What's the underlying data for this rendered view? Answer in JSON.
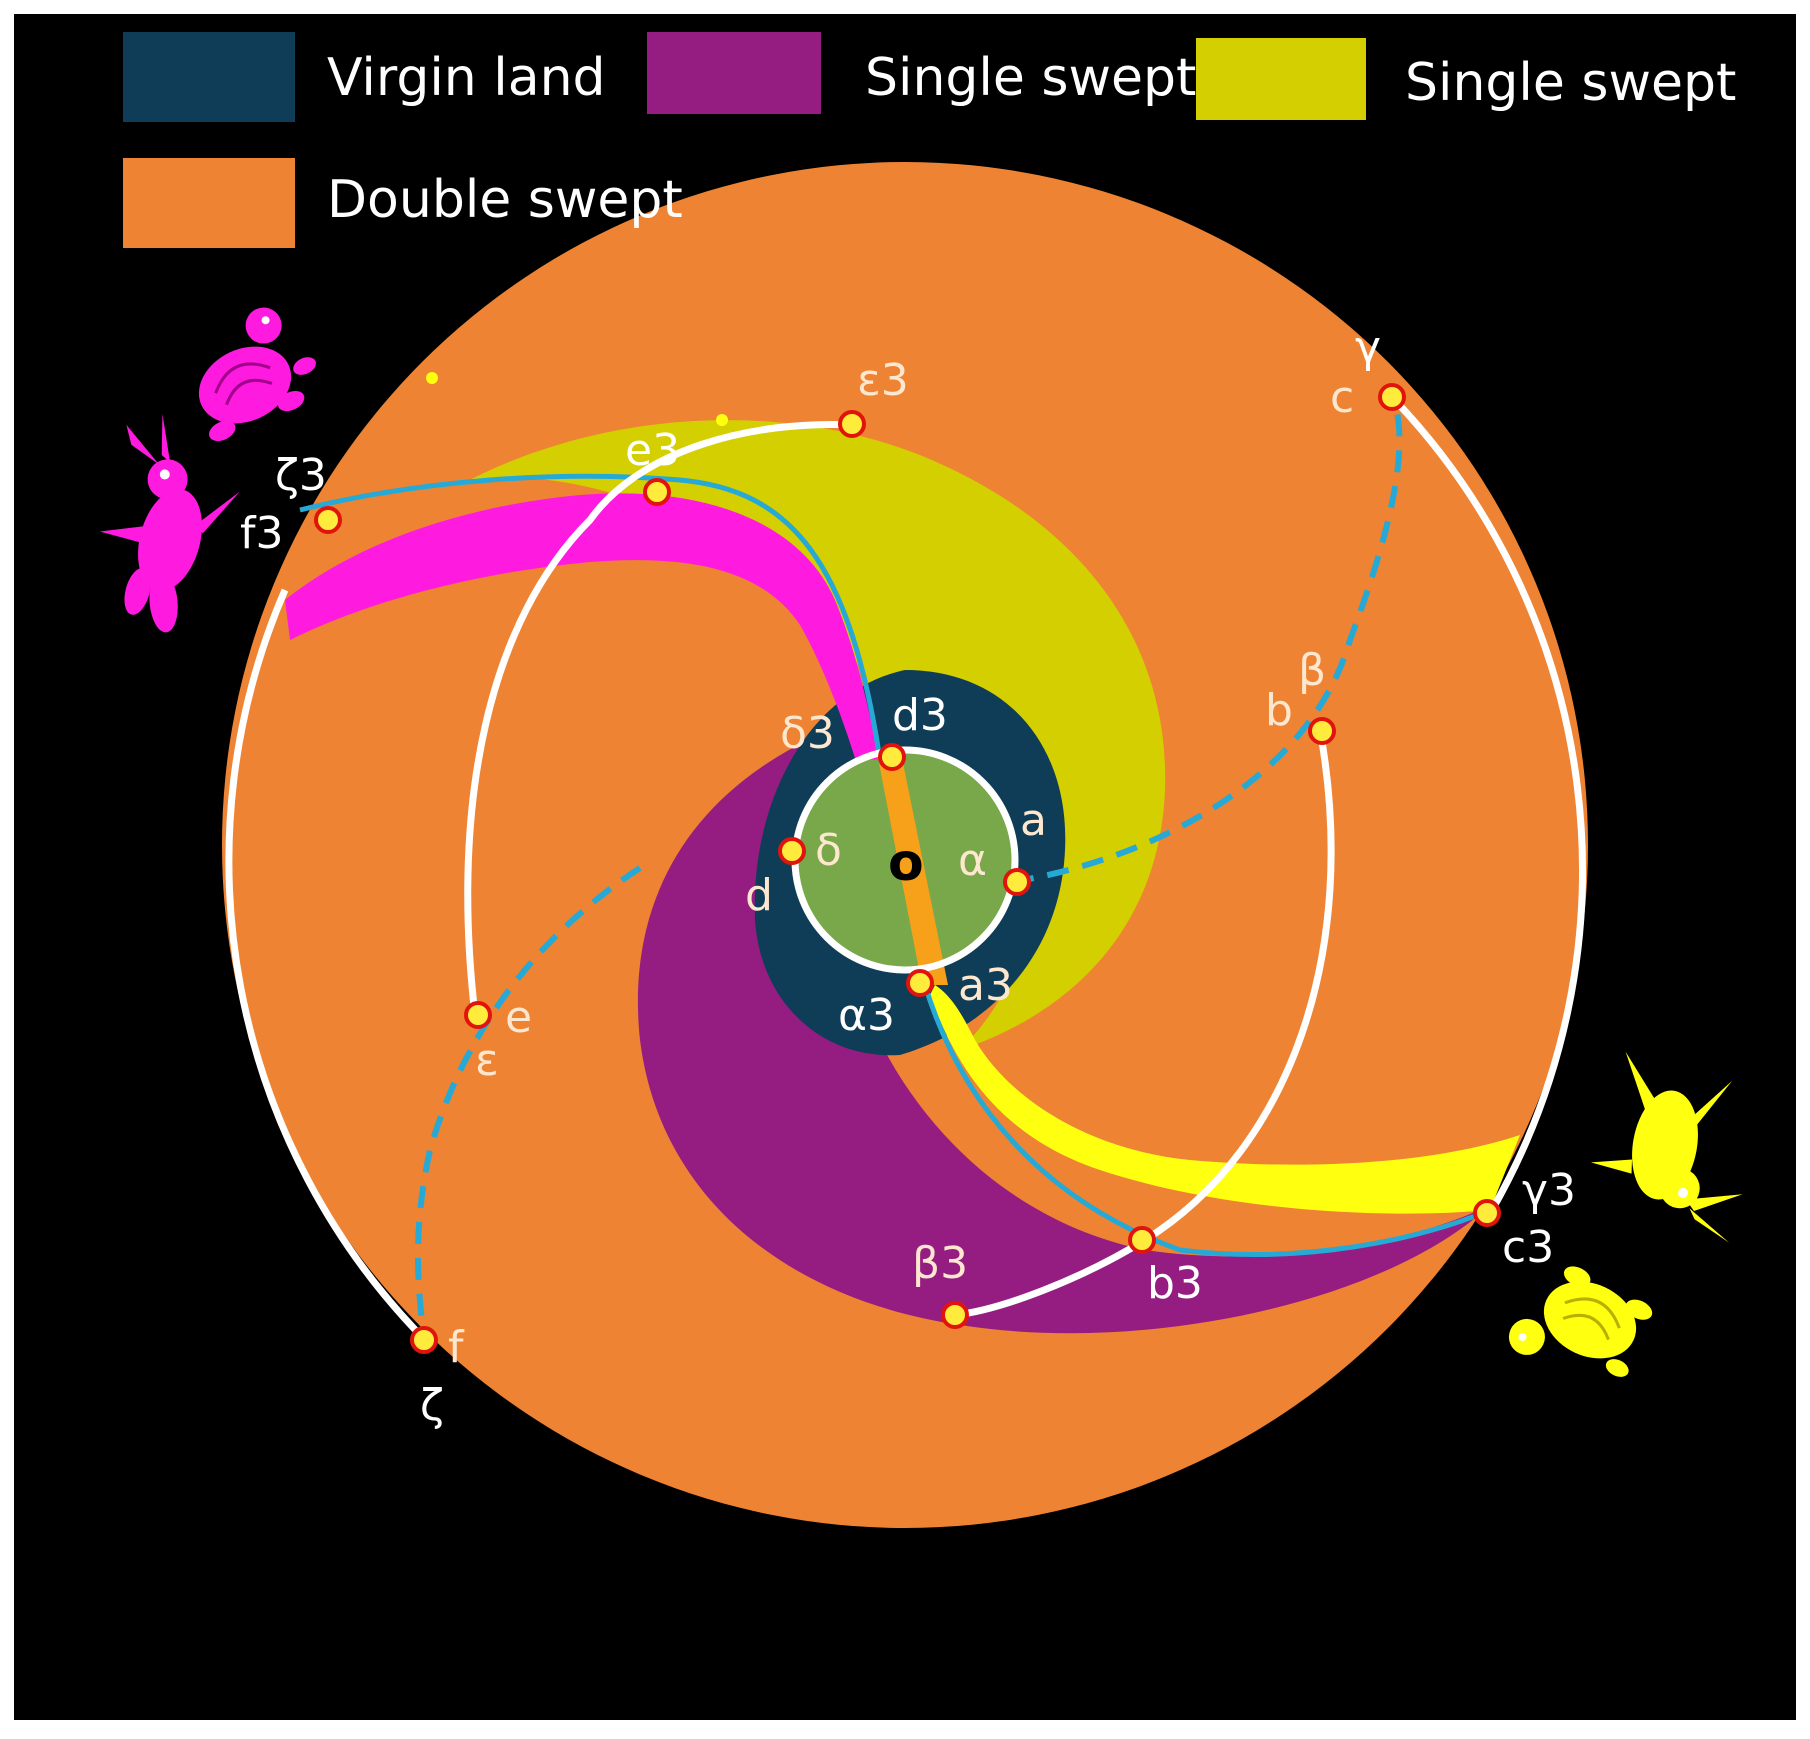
{
  "legend": {
    "items": [
      {
        "label": "Virgin land",
        "color": "#0f3d57"
      },
      {
        "label": "Single swept",
        "color": "#951d82"
      },
      {
        "label": "Single swept",
        "color": "#d4cf00"
      },
      {
        "label": "Double swept",
        "color": "#ee8333"
      }
    ]
  },
  "colors": {
    "background": "#000000",
    "double_swept": "#ee8333",
    "virgin_land": "#0f3d57",
    "single_swept_purple": "#951d82",
    "single_swept_yellow": "#d4cf00",
    "inner_disk": "#78a84a",
    "magenta_band": "#ff1ae0",
    "yellow_band": "#ffff10",
    "center_strip": "#f7a11a",
    "path_white": "#ffffff",
    "dash_path": "#27a9d6",
    "point_fill": "#ffeb3b",
    "point_ring": "#e0140c",
    "label_white": "#ffffff",
    "label_light": "#fde7cf"
  },
  "center": {
    "label": "o"
  },
  "points": {
    "a": "a",
    "alpha": "α",
    "a3": "a3",
    "alpha3": "α3",
    "b": "b",
    "beta": "β",
    "b3": "b3",
    "beta3": "β3",
    "c": "c",
    "gamma": "γ",
    "c3": "c3",
    "gamma3": "γ3",
    "d": "d",
    "delta": "δ",
    "d3": "d3",
    "delta3": "δ3",
    "e": "e",
    "epsilon": "ε",
    "e3": "e3",
    "epsilon3": "ε3",
    "f": "f",
    "zeta": "ζ",
    "f3": "f3",
    "zeta3": "ζ3"
  },
  "icons": [
    "magenta-tortoise-icon",
    "magenta-hare-icon",
    "yellow-hare-icon",
    "yellow-tortoise-icon"
  ]
}
